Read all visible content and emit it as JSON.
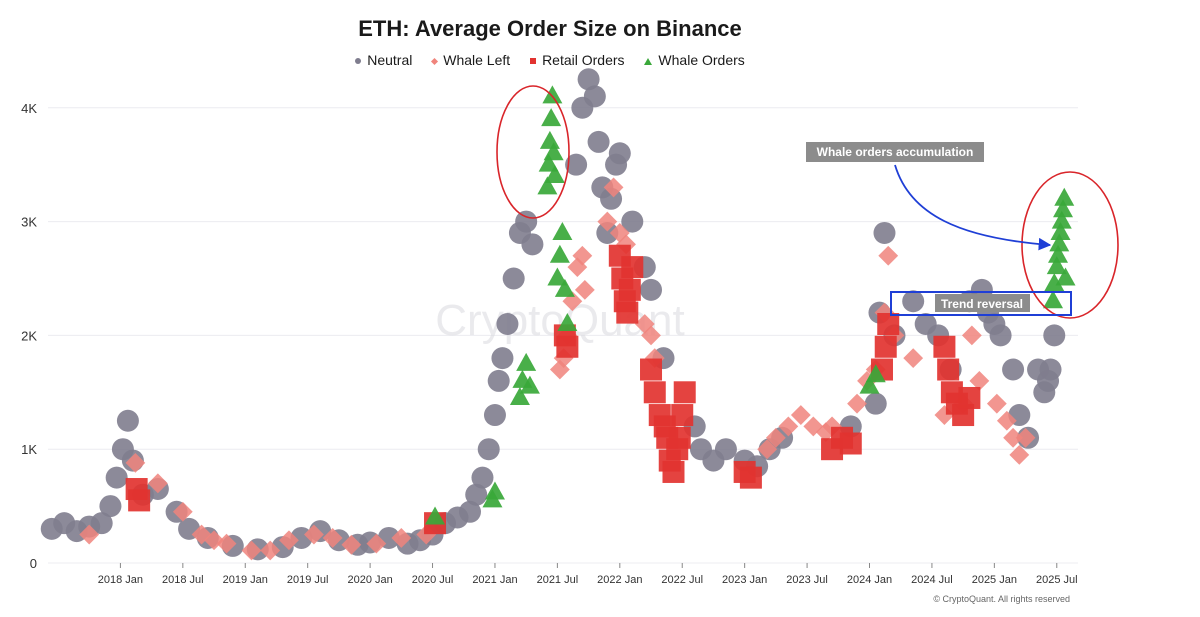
{
  "chart_data": {
    "type": "scatter",
    "title": "ETH: Average Order Size on Binance",
    "xlabel": "",
    "ylabel": "",
    "xlim": [
      2017.42,
      2025.67
    ],
    "ylim": [
      0,
      4200
    ],
    "y_ticks": [
      {
        "value": 0,
        "label": "0"
      },
      {
        "value": 1000,
        "label": "1K"
      },
      {
        "value": 2000,
        "label": "2K"
      },
      {
        "value": 3000,
        "label": "3K"
      },
      {
        "value": 4000,
        "label": "4K"
      }
    ],
    "x_ticks": [
      {
        "value": 2018.0,
        "label": "2018 Jan"
      },
      {
        "value": 2018.5,
        "label": "2018 Jul"
      },
      {
        "value": 2019.0,
        "label": "2019 Jan"
      },
      {
        "value": 2019.5,
        "label": "2019 Jul"
      },
      {
        "value": 2020.0,
        "label": "2020 Jan"
      },
      {
        "value": 2020.5,
        "label": "2020 Jul"
      },
      {
        "value": 2021.0,
        "label": "2021 Jan"
      },
      {
        "value": 2021.5,
        "label": "2021 Jul"
      },
      {
        "value": 2022.0,
        "label": "2022 Jan"
      },
      {
        "value": 2022.5,
        "label": "2022 Jul"
      },
      {
        "value": 2023.0,
        "label": "2023 Jan"
      },
      {
        "value": 2023.5,
        "label": "2023 Jul"
      },
      {
        "value": 2024.0,
        "label": "2024 Jan"
      },
      {
        "value": 2024.5,
        "label": "2024 Jul"
      },
      {
        "value": 2025.0,
        "label": "2025 Jan"
      },
      {
        "value": 2025.5,
        "label": "2025 Jul"
      }
    ],
    "grid": true,
    "legend_position": "top-center",
    "series": [
      {
        "name": "Neutral",
        "marker": "circle",
        "color": "#7f7d8e",
        "x": [
          2017.45,
          2017.55,
          2017.65,
          2017.75,
          2017.85,
          2017.92,
          2017.97,
          2018.02,
          2018.06,
          2018.1,
          2018.18,
          2018.3,
          2018.45,
          2018.55,
          2018.7,
          2018.9,
          2019.1,
          2019.3,
          2019.45,
          2019.6,
          2019.75,
          2019.9,
          2020.0,
          2020.15,
          2020.3,
          2020.4,
          2020.5,
          2020.6,
          2020.7,
          2020.8,
          2020.85,
          2020.9,
          2020.95,
          2021.0,
          2021.03,
          2021.06,
          2021.1,
          2021.15,
          2021.2,
          2021.25,
          2021.3,
          2021.65,
          2021.7,
          2021.75,
          2021.8,
          2021.83,
          2021.86,
          2021.9,
          2021.93,
          2021.97,
          2022.0,
          2022.1,
          2022.2,
          2022.25,
          2022.35,
          2022.6,
          2022.65,
          2022.75,
          2022.85,
          2023.0,
          2023.1,
          2023.2,
          2023.3,
          2023.85,
          2024.05,
          2024.08,
          2024.12,
          2024.2,
          2024.35,
          2024.45,
          2024.55,
          2024.65,
          2024.8,
          2024.9,
          2024.95,
          2025.0,
          2025.05,
          2025.15,
          2025.2,
          2025.27,
          2025.35,
          2025.4,
          2025.43,
          2025.45,
          2025.48
        ],
        "y": [
          300,
          350,
          280,
          320,
          350,
          500,
          750,
          1000,
          1250,
          900,
          600,
          650,
          450,
          300,
          220,
          150,
          120,
          140,
          220,
          280,
          200,
          160,
          180,
          220,
          170,
          200,
          250,
          350,
          400,
          450,
          600,
          750,
          1000,
          1300,
          1600,
          1800,
          2100,
          2500,
          2900,
          3000,
          2800,
          3500,
          4000,
          4250,
          4100,
          3700,
          3300,
          2900,
          3200,
          3500,
          3600,
          3000,
          2600,
          2400,
          1800,
          1200,
          1000,
          900,
          1000,
          900,
          850,
          1000,
          1100,
          1200,
          1400,
          2200,
          2900,
          2000,
          2300,
          2100,
          2000,
          1700,
          2300,
          2400,
          2200,
          2100,
          2000,
          1700,
          1300,
          1100,
          1700,
          1500,
          1600,
          1700,
          2000
        ]
      },
      {
        "name": "Whale Left",
        "marker": "diamond",
        "color": "#f0847c",
        "x": [
          2017.75,
          2018.12,
          2018.3,
          2018.5,
          2018.65,
          2018.75,
          2018.85,
          2019.05,
          2019.2,
          2019.35,
          2019.55,
          2019.7,
          2019.85,
          2020.05,
          2020.25,
          2020.45,
          2021.52,
          2021.55,
          2021.58,
          2021.62,
          2021.66,
          2021.7,
          2021.72,
          2021.9,
          2021.95,
          2022.0,
          2022.05,
          2022.2,
          2022.25,
          2022.28,
          2023.18,
          2023.25,
          2023.35,
          2023.45,
          2023.55,
          2023.65,
          2023.7,
          2023.9,
          2023.98,
          2024.05,
          2024.12,
          2024.15,
          2024.2,
          2024.35,
          2024.6,
          2024.75,
          2024.82,
          2024.88,
          2025.02,
          2025.1,
          2025.15,
          2025.2,
          2025.25
        ],
        "y": [
          250,
          880,
          700,
          450,
          250,
          200,
          170,
          110,
          110,
          200,
          250,
          220,
          160,
          170,
          220,
          250,
          1700,
          1800,
          2000,
          2300,
          2600,
          2700,
          2400,
          3000,
          3300,
          2900,
          2800,
          2100,
          2000,
          1800,
          1000,
          1100,
          1200,
          1300,
          1200,
          1150,
          1200,
          1400,
          1600,
          1700,
          2200,
          2700,
          2000,
          1800,
          1300,
          1400,
          2000,
          1600,
          1400,
          1250,
          1100,
          950,
          1100
        ]
      },
      {
        "name": "Retail Orders",
        "marker": "square",
        "color": "#e23330",
        "x": [
          2018.13,
          2018.15,
          2020.52,
          2021.56,
          2021.58,
          2022.0,
          2022.02,
          2022.04,
          2022.06,
          2022.08,
          2022.1,
          2022.25,
          2022.28,
          2022.32,
          2022.36,
          2022.38,
          2022.4,
          2022.43,
          2022.46,
          2022.48,
          2022.5,
          2022.52,
          2023.0,
          2023.05,
          2023.7,
          2023.78,
          2023.85,
          2024.1,
          2024.13,
          2024.15,
          2024.6,
          2024.63,
          2024.66,
          2024.7,
          2024.75,
          2024.8
        ],
        "y": [
          650,
          550,
          350,
          2000,
          1900,
          2700,
          2500,
          2300,
          2200,
          2400,
          2600,
          1700,
          1500,
          1300,
          1200,
          1100,
          900,
          800,
          1000,
          1100,
          1300,
          1500,
          800,
          750,
          1000,
          1100,
          1050,
          1700,
          1900,
          2100,
          1900,
          1700,
          1500,
          1400,
          1300,
          1450
        ]
      },
      {
        "name": "Whale Orders",
        "marker": "triangle",
        "color": "#3aa83a",
        "x": [
          2020.52,
          2020.98,
          2021.0,
          2021.2,
          2021.22,
          2021.25,
          2021.28,
          2021.42,
          2021.43,
          2021.44,
          2021.45,
          2021.46,
          2021.47,
          2021.48,
          2021.5,
          2021.52,
          2021.54,
          2021.56,
          2021.58,
          2024.0,
          2024.05,
          2025.47,
          2025.48,
          2025.5,
          2025.51,
          2025.52,
          2025.53,
          2025.54,
          2025.55,
          2025.56,
          2025.57
        ],
        "y": [
          400,
          550,
          620,
          1450,
          1600,
          1750,
          1550,
          3300,
          3500,
          3700,
          3900,
          4100,
          3600,
          3400,
          2500,
          2700,
          2900,
          2400,
          2100,
          1550,
          1650,
          2300,
          2450,
          2600,
          2700,
          2800,
          2900,
          3000,
          3100,
          3200,
          2500
        ]
      }
    ],
    "annotations": {
      "whale_accumulation_label": "Whale orders accumulation",
      "trend_reversal_label": "Trend reversal",
      "watermark": "CryptoQuant",
      "copyright": "© CryptoQuant. All rights reserved"
    }
  },
  "legend": [
    {
      "label": "Neutral",
      "color": "#7f7d8e",
      "marker": "dot"
    },
    {
      "label": "Whale Left",
      "color": "#f0847c",
      "marker": "diamond"
    },
    {
      "label": "Retail Orders",
      "color": "#e23330",
      "marker": "square"
    },
    {
      "label": "Whale Orders",
      "color": "#3aa83a",
      "marker": "triangle"
    }
  ]
}
